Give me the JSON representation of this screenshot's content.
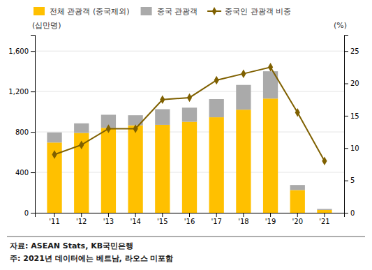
{
  "chart_data": {
    "type": "bar",
    "stacked": true,
    "categories": [
      "'11",
      "'12",
      "'13",
      "'14",
      "'15",
      "'16",
      "'17",
      "'18",
      "'19",
      "'20",
      "'21"
    ],
    "series": [
      {
        "name": "전체 관광객 (중국제외)",
        "color": "#FFC000",
        "values": [
          695,
          790,
          840,
          865,
          870,
          900,
          945,
          1020,
          1130,
          225,
          28
        ]
      },
      {
        "name": "중국 관광객",
        "color": "#AAAAAA",
        "values": [
          100,
          95,
          130,
          100,
          155,
          140,
          180,
          245,
          270,
          50,
          10
        ]
      },
      {
        "name": "중국인 관광객 비중",
        "type": "line",
        "marker": "diamond",
        "color": "#7F6000",
        "axis": "y2",
        "values": [
          9.0,
          10.5,
          13.0,
          13.0,
          17.5,
          17.8,
          20.5,
          21.5,
          22.5,
          15.5,
          8.0
        ]
      }
    ],
    "ylim": [
      0,
      1760
    ],
    "yticks": [
      0,
      400,
      800,
      {
        "value": 1200,
        "label": "1,200"
      },
      {
        "value": 1600,
        "label": "1,600"
      }
    ],
    "y2lim": [
      0,
      27.5
    ],
    "y2ticks": [
      0,
      5,
      10,
      15,
      20,
      25
    ],
    "ylabel": "(십만명)",
    "y2label": "(%)",
    "grid": true,
    "legend": "upper left",
    "annotations": [
      "자료: ASEAN Stats, KB국민은행",
      "주: 2021년 데이터에는 베트남, 라오스 미포함"
    ]
  }
}
